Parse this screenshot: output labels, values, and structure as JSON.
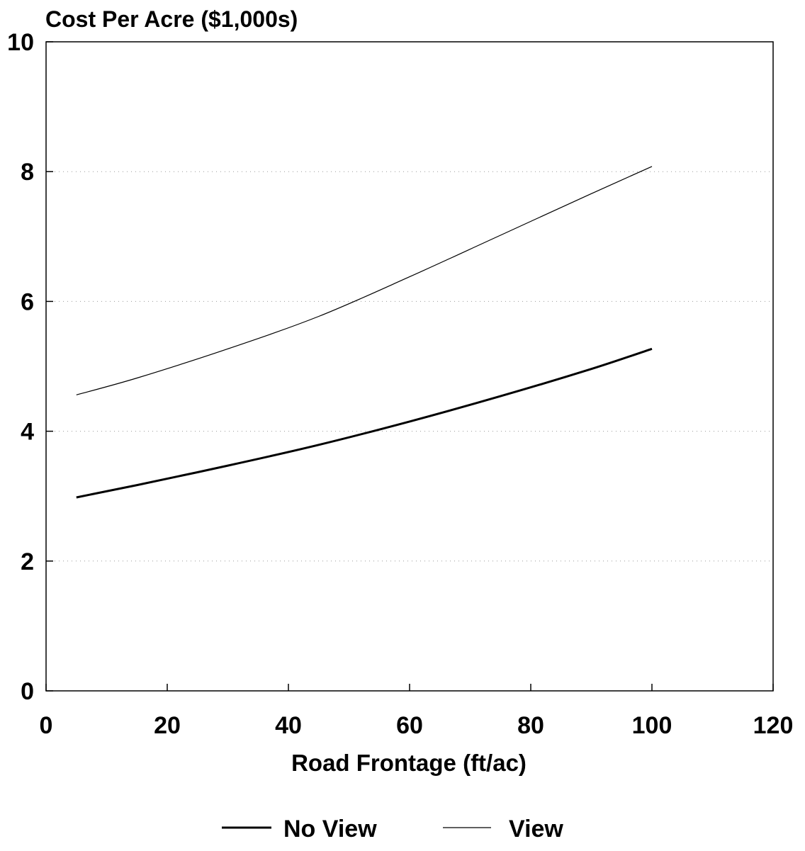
{
  "chart_data": {
    "type": "line",
    "title": "Cost Per Acre ($1,000s)",
    "xlabel": "Road Frontage (ft/ac)",
    "ylabel": "",
    "xlim": [
      0,
      120
    ],
    "ylim": [
      0,
      10
    ],
    "x_ticks": [
      "0",
      "20",
      "40",
      "60",
      "80",
      "100",
      "120"
    ],
    "y_ticks": [
      "0",
      "2",
      "4",
      "6",
      "8",
      "10"
    ],
    "grid": "dotted horizontal at y ticks",
    "legend_position": "bottom",
    "series": [
      {
        "name": "No View",
        "style": "thick",
        "x": [
          5,
          15,
          30,
          45,
          60,
          75,
          90,
          100
        ],
        "y": [
          2.98,
          3.17,
          3.47,
          3.79,
          4.15,
          4.54,
          4.96,
          5.27
        ]
      },
      {
        "name": "View",
        "style": "thin",
        "x": [
          5,
          15,
          30,
          45,
          60,
          75,
          90,
          100
        ],
        "y": [
          4.56,
          4.82,
          5.27,
          5.77,
          6.38,
          7.02,
          7.66,
          8.08
        ]
      }
    ]
  }
}
